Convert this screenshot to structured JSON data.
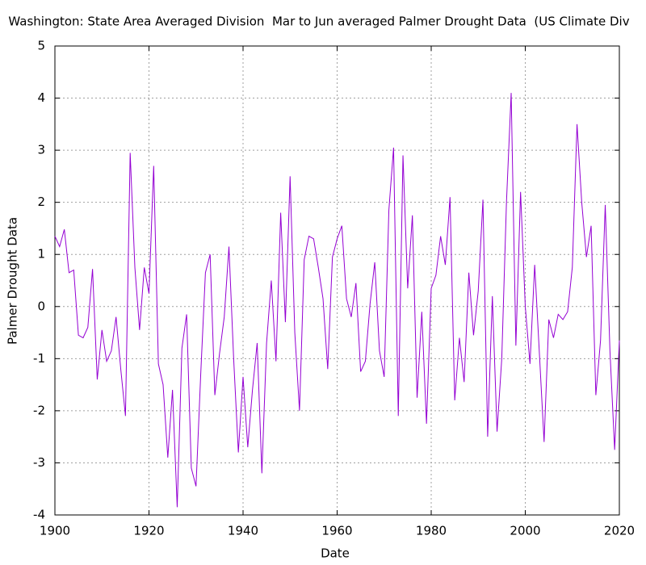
{
  "chart_data": {
    "type": "line",
    "title": "Washington: State Area Averaged Division  Mar to Jun averaged Palmer Drought Data  (US Climate Div",
    "xlabel": "Date",
    "ylabel": "Palmer Drought Data",
    "xlim": [
      1900,
      2020
    ],
    "xticks": [
      1900,
      1920,
      1940,
      1960,
      1980,
      2000,
      2020
    ],
    "ylim": [
      -4,
      5
    ],
    "yticks": [
      -4,
      -3,
      -2,
      -1,
      0,
      1,
      2,
      3,
      4,
      5
    ],
    "grid": true,
    "x": [
      1900,
      1901,
      1902,
      1903,
      1904,
      1905,
      1906,
      1907,
      1908,
      1909,
      1910,
      1911,
      1912,
      1913,
      1914,
      1915,
      1916,
      1917,
      1918,
      1919,
      1920,
      1921,
      1922,
      1923,
      1924,
      1925,
      1926,
      1927,
      1928,
      1929,
      1930,
      1931,
      1932,
      1933,
      1934,
      1935,
      1936,
      1937,
      1938,
      1939,
      1940,
      1941,
      1942,
      1943,
      1944,
      1945,
      1946,
      1947,
      1948,
      1949,
      1950,
      1951,
      1952,
      1953,
      1954,
      1955,
      1956,
      1957,
      1958,
      1959,
      1960,
      1961,
      1962,
      1963,
      1964,
      1965,
      1966,
      1967,
      1968,
      1969,
      1970,
      1971,
      1972,
      1973,
      1974,
      1975,
      1976,
      1977,
      1978,
      1979,
      1980,
      1981,
      1982,
      1983,
      1984,
      1985,
      1986,
      1987,
      1988,
      1989,
      1990,
      1991,
      1992,
      1993,
      1994,
      1995,
      1996,
      1997,
      1998,
      1999,
      2000,
      2001,
      2002,
      2003,
      2004,
      2005,
      2006,
      2007,
      2008,
      2009,
      2010,
      2011,
      2012,
      2013,
      2014,
      2015,
      2016,
      2017,
      2018,
      2019,
      2020
    ],
    "series": [
      {
        "name": "Palmer Drought Data",
        "color": "#9400d3",
        "values": [
          1.35,
          1.15,
          1.48,
          0.65,
          0.7,
          -0.55,
          -0.6,
          -0.4,
          0.72,
          -1.4,
          -0.45,
          -1.05,
          -0.85,
          -0.2,
          -1.2,
          -2.1,
          2.95,
          0.75,
          -0.45,
          0.75,
          0.25,
          2.7,
          -1.1,
          -1.5,
          -2.9,
          -1.6,
          -3.85,
          -0.8,
          -0.15,
          -3.1,
          -3.45,
          -1.3,
          0.65,
          1.0,
          -1.7,
          -0.9,
          -0.2,
          1.15,
          -1.0,
          -2.8,
          -1.35,
          -2.7,
          -1.6,
          -0.7,
          -3.2,
          -0.7,
          0.5,
          -1.05,
          1.8,
          -0.3,
          2.5,
          -0.5,
          -2.0,
          0.9,
          1.35,
          1.3,
          0.75,
          0.15,
          -1.2,
          0.95,
          1.3,
          1.55,
          0.15,
          -0.2,
          0.45,
          -1.25,
          -1.05,
          0.05,
          0.85,
          -0.85,
          -1.35,
          1.85,
          3.05,
          -2.1,
          2.9,
          0.35,
          1.75,
          -1.75,
          -0.1,
          -2.25,
          0.35,
          0.6,
          1.35,
          0.8,
          2.1,
          -1.8,
          -0.6,
          -1.45,
          0.65,
          -0.55,
          0.3,
          2.05,
          -2.5,
          0.2,
          -2.4,
          -1.0,
          2.0,
          4.1,
          -0.75,
          2.2,
          0.0,
          -1.1,
          0.8,
          -0.9,
          -2.6,
          -0.25,
          -0.6,
          -0.15,
          -0.25,
          -0.1,
          0.75,
          3.5,
          2.0,
          0.95,
          1.55,
          -1.7,
          -0.65,
          1.95,
          -0.85,
          -2.75,
          -0.65
        ]
      }
    ]
  }
}
